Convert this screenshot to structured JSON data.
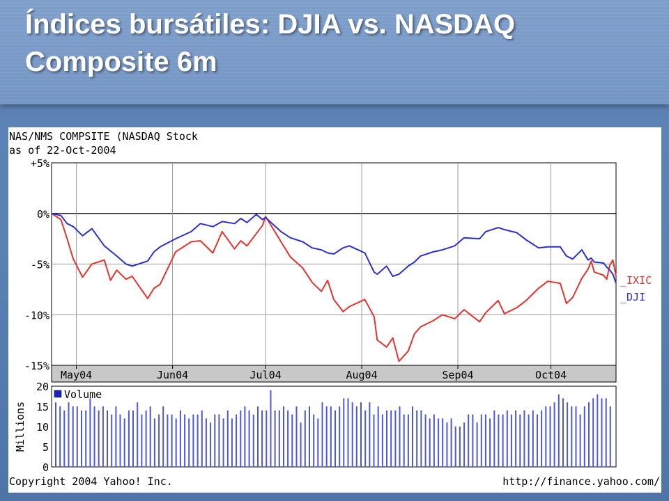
{
  "slide": {
    "title": "Índices bursátiles: DJIA vs. NASDAQ Composite 6m"
  },
  "colors": {
    "background": "#5f86b9",
    "plot_background": "#ffffff",
    "ixic": "#e8322d",
    "dji": "#2a2fd0",
    "volume": "#4d58d8",
    "axis_band": "#c8c8c8"
  },
  "chart_data": [
    {
      "type": "line",
      "header_line1": "NAS/NMS COMPSITE (NASDAQ Stock",
      "header_line2": "as of 22-Oct-2004",
      "ylim": [
        -15,
        5
      ],
      "yticks": [
        5,
        0,
        -5,
        -10,
        -15
      ],
      "ytick_labels": [
        "+5%",
        "0%",
        "-5%",
        "-10%",
        "-15%"
      ],
      "xlim": [
        "2004-04-23",
        "2004-10-22"
      ],
      "x_tick_labels": [
        "May04",
        "Jun04",
        "Jul04",
        "Aug04",
        "Sep04",
        "Oct04"
      ],
      "x_tick_dates": [
        "2004-05-01",
        "2004-06-01",
        "2004-07-01",
        "2004-08-01",
        "2004-09-01",
        "2004-10-01"
      ],
      "grid": true,
      "legend": "right",
      "series": [
        {
          "name": "_IXIC",
          "color": "#e8322d",
          "points": [
            [
              "2004-04-23",
              0.0
            ],
            [
              "2004-04-26",
              -0.6
            ],
            [
              "2004-04-28",
              -2.5
            ],
            [
              "2004-04-30",
              -4.5
            ],
            [
              "2004-05-03",
              -6.3
            ],
            [
              "2004-05-06",
              -5.0
            ],
            [
              "2004-05-10",
              -4.6
            ],
            [
              "2004-05-12",
              -6.6
            ],
            [
              "2004-05-14",
              -5.6
            ],
            [
              "2004-05-17",
              -6.5
            ],
            [
              "2004-05-19",
              -6.2
            ],
            [
              "2004-05-21",
              -7.1
            ],
            [
              "2004-05-24",
              -8.4
            ],
            [
              "2004-05-26",
              -7.4
            ],
            [
              "2004-05-28",
              -7.0
            ],
            [
              "2004-06-02",
              -3.8
            ],
            [
              "2004-06-07",
              -2.8
            ],
            [
              "2004-06-10",
              -2.7
            ],
            [
              "2004-06-14",
              -3.9
            ],
            [
              "2004-06-17",
              -1.8
            ],
            [
              "2004-06-21",
              -3.5
            ],
            [
              "2004-06-23",
              -2.7
            ],
            [
              "2004-06-25",
              -3.2
            ],
            [
              "2004-06-28",
              -2.0
            ],
            [
              "2004-06-30",
              -1.2
            ],
            [
              "2004-07-01",
              -0.3
            ],
            [
              "2004-07-06",
              -2.8
            ],
            [
              "2004-07-09",
              -4.3
            ],
            [
              "2004-07-13",
              -5.4
            ],
            [
              "2004-07-16",
              -6.8
            ],
            [
              "2004-07-19",
              -7.7
            ],
            [
              "2004-07-21",
              -6.6
            ],
            [
              "2004-07-23",
              -8.5
            ],
            [
              "2004-07-26",
              -9.7
            ],
            [
              "2004-07-28",
              -9.2
            ],
            [
              "2004-08-02",
              -8.5
            ],
            [
              "2004-08-05",
              -10.2
            ],
            [
              "2004-08-06",
              -12.5
            ],
            [
              "2004-08-09",
              -13.2
            ],
            [
              "2004-08-11",
              -12.3
            ],
            [
              "2004-08-13",
              -14.6
            ],
            [
              "2004-08-16",
              -13.6
            ],
            [
              "2004-08-18",
              -11.9
            ],
            [
              "2004-08-20",
              -11.2
            ],
            [
              "2004-08-24",
              -10.6
            ],
            [
              "2004-08-27",
              -10.0
            ],
            [
              "2004-08-31",
              -10.4
            ],
            [
              "2004-09-03",
              -9.5
            ],
            [
              "2004-09-08",
              -10.7
            ],
            [
              "2004-09-10",
              -9.8
            ],
            [
              "2004-09-14",
              -8.6
            ],
            [
              "2004-09-16",
              -9.9
            ],
            [
              "2004-09-20",
              -9.3
            ],
            [
              "2004-09-23",
              -8.6
            ],
            [
              "2004-09-27",
              -7.4
            ],
            [
              "2004-09-30",
              -6.7
            ],
            [
              "2004-10-04",
              -6.9
            ],
            [
              "2004-10-06",
              -8.9
            ],
            [
              "2004-10-08",
              -8.3
            ],
            [
              "2004-10-11",
              -6.4
            ],
            [
              "2004-10-13",
              -5.5
            ],
            [
              "2004-10-14",
              -4.7
            ],
            [
              "2004-10-15",
              -5.8
            ],
            [
              "2004-10-18",
              -6.1
            ],
            [
              "2004-10-19",
              -6.5
            ],
            [
              "2004-10-20",
              -5.1
            ],
            [
              "2004-10-21",
              -4.6
            ],
            [
              "2004-10-22",
              -6.2
            ]
          ]
        },
        {
          "name": "_DJI",
          "color": "#2a2fd0",
          "points": [
            [
              "2004-04-23",
              0.0
            ],
            [
              "2004-04-26",
              -0.2
            ],
            [
              "2004-04-28",
              -1.0
            ],
            [
              "2004-04-30",
              -1.3
            ],
            [
              "2004-05-03",
              -2.2
            ],
            [
              "2004-05-06",
              -1.5
            ],
            [
              "2004-05-10",
              -3.2
            ],
            [
              "2004-05-12",
              -3.7
            ],
            [
              "2004-05-14",
              -4.2
            ],
            [
              "2004-05-17",
              -5.0
            ],
            [
              "2004-05-19",
              -5.2
            ],
            [
              "2004-05-21",
              -5.0
            ],
            [
              "2004-05-24",
              -4.7
            ],
            [
              "2004-05-26",
              -3.8
            ],
            [
              "2004-05-28",
              -3.3
            ],
            [
              "2004-06-02",
              -2.5
            ],
            [
              "2004-06-07",
              -1.8
            ],
            [
              "2004-06-10",
              -1.0
            ],
            [
              "2004-06-14",
              -1.3
            ],
            [
              "2004-06-17",
              -0.8
            ],
            [
              "2004-06-21",
              -1.0
            ],
            [
              "2004-06-23",
              -0.5
            ],
            [
              "2004-06-25",
              -0.9
            ],
            [
              "2004-06-28",
              -0.1
            ],
            [
              "2004-06-30",
              -0.6
            ],
            [
              "2004-07-01",
              -0.4
            ],
            [
              "2004-07-06",
              -1.8
            ],
            [
              "2004-07-09",
              -2.4
            ],
            [
              "2004-07-13",
              -2.8
            ],
            [
              "2004-07-16",
              -3.4
            ],
            [
              "2004-07-19",
              -3.6
            ],
            [
              "2004-07-21",
              -3.9
            ],
            [
              "2004-07-23",
              -4.0
            ],
            [
              "2004-07-26",
              -3.4
            ],
            [
              "2004-07-28",
              -3.2
            ],
            [
              "2004-08-02",
              -3.9
            ],
            [
              "2004-08-05",
              -5.8
            ],
            [
              "2004-08-06",
              -6.0
            ],
            [
              "2004-08-09",
              -5.2
            ],
            [
              "2004-08-11",
              -6.2
            ],
            [
              "2004-08-13",
              -6.0
            ],
            [
              "2004-08-16",
              -5.2
            ],
            [
              "2004-08-18",
              -4.8
            ],
            [
              "2004-08-20",
              -4.2
            ],
            [
              "2004-08-24",
              -3.8
            ],
            [
              "2004-08-27",
              -3.6
            ],
            [
              "2004-08-31",
              -3.2
            ],
            [
              "2004-09-03",
              -2.4
            ],
            [
              "2004-09-08",
              -2.5
            ],
            [
              "2004-09-10",
              -1.8
            ],
            [
              "2004-09-14",
              -1.4
            ],
            [
              "2004-09-16",
              -1.6
            ],
            [
              "2004-09-20",
              -1.9
            ],
            [
              "2004-09-23",
              -2.6
            ],
            [
              "2004-09-27",
              -3.4
            ],
            [
              "2004-09-30",
              -3.3
            ],
            [
              "2004-10-04",
              -3.3
            ],
            [
              "2004-10-06",
              -4.2
            ],
            [
              "2004-10-08",
              -4.5
            ],
            [
              "2004-10-11",
              -3.6
            ],
            [
              "2004-10-13",
              -4.6
            ],
            [
              "2004-10-14",
              -4.4
            ],
            [
              "2004-10-15",
              -4.8
            ],
            [
              "2004-10-18",
              -4.9
            ],
            [
              "2004-10-19",
              -5.3
            ],
            [
              "2004-10-20",
              -5.6
            ],
            [
              "2004-10-21",
              -6.0
            ],
            [
              "2004-10-22",
              -6.9
            ]
          ]
        }
      ]
    },
    {
      "type": "bar",
      "series_name": "Volume",
      "ylabel": "Millions",
      "ylim": [
        0,
        20
      ],
      "yticks": [
        0,
        5,
        10,
        15,
        20
      ],
      "ytick_labels": [
        "0",
        "5",
        "10",
        "15",
        "20"
      ],
      "color": "#4d58d8",
      "values": [
        16,
        15,
        14,
        16,
        15,
        15,
        14,
        14,
        17,
        15,
        14,
        15,
        14,
        13,
        15,
        13,
        12,
        14,
        14,
        16,
        13,
        14,
        15,
        12,
        13,
        15,
        13,
        13,
        12,
        14,
        13,
        12,
        13,
        13,
        14,
        12,
        11,
        13,
        13,
        12,
        14,
        12,
        13,
        14,
        15,
        14,
        13,
        15,
        14,
        14,
        19,
        14,
        14,
        15,
        14,
        13,
        15,
        11,
        14,
        15,
        13,
        12,
        16,
        15,
        15,
        14,
        15,
        17,
        17,
        16,
        15,
        16,
        14,
        16,
        13,
        15,
        13,
        14,
        14,
        14,
        15,
        13,
        13,
        15,
        14,
        14,
        13,
        12,
        13,
        12,
        12,
        11,
        12,
        10,
        10,
        11,
        13,
        13,
        11,
        13,
        13,
        12,
        14,
        13,
        13,
        14,
        13,
        14,
        13,
        14,
        13,
        14,
        13,
        14,
        15,
        15,
        16,
        18,
        17,
        16,
        15,
        15,
        13,
        15,
        16,
        17,
        18,
        17,
        17,
        15
      ],
      "legend": "top-left"
    }
  ],
  "legend_labels": [
    "_IXIC",
    "_DJI"
  ],
  "footer": {
    "copyright": "Copyright 2004 Yahoo! Inc.",
    "url": "http://finance.yahoo.com/"
  }
}
